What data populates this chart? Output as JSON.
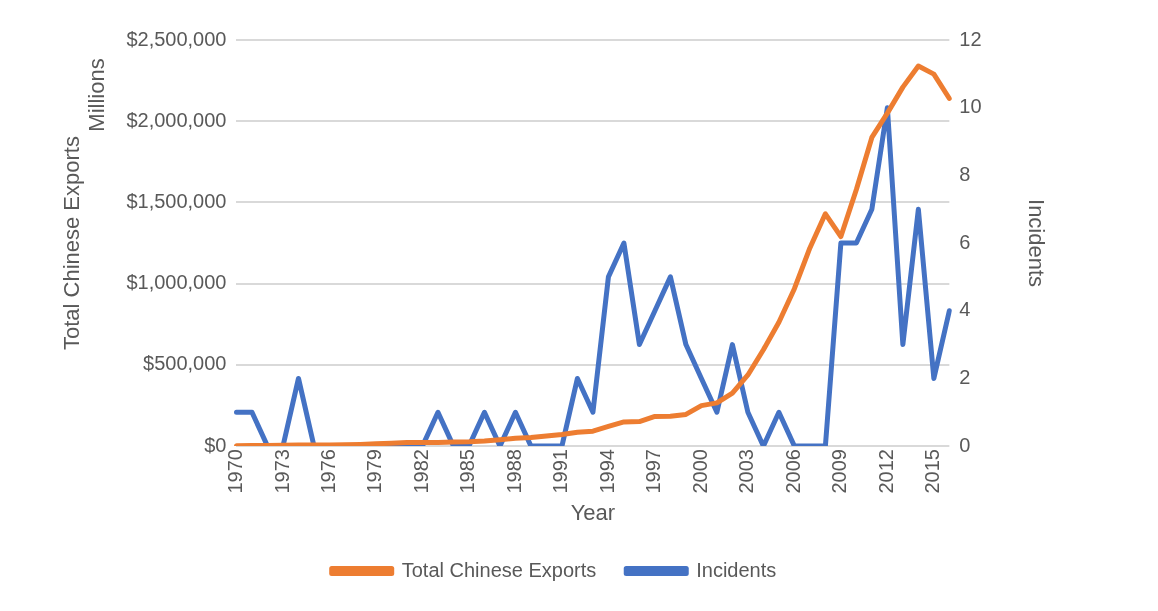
{
  "chart_data": {
    "type": "line",
    "categories": [
      "1970",
      null,
      null,
      "1973",
      null,
      null,
      "1976",
      null,
      null,
      "1979",
      null,
      null,
      "1982",
      null,
      null,
      "1985",
      null,
      null,
      "1988",
      null,
      null,
      "1991",
      null,
      null,
      "1994",
      null,
      null,
      "1997",
      null,
      null,
      "2000",
      null,
      null,
      "2003",
      null,
      null,
      "2006",
      null,
      null,
      "2009",
      null,
      null,
      "2012",
      null,
      null,
      "2015",
      null
    ],
    "series": [
      {
        "name": "Total Chinese Exports",
        "color": "#ed7d31",
        "values": [
          2000,
          3000,
          3000,
          6000,
          7000,
          7000,
          7000,
          8000,
          10000,
          14000,
          18000,
          22000,
          22000,
          22000,
          26000,
          27000,
          31000,
          39000,
          48000,
          53000,
          62000,
          72000,
          85000,
          92000,
          121000,
          149000,
          151000,
          183000,
          184000,
          195000,
          249000,
          266000,
          326000,
          438000,
          593000,
          762000,
          969000,
          1220000,
          1430000,
          1290000,
          1580000,
          1900000,
          2050000,
          2210000,
          2340000,
          2290000,
          2140000
        ]
      },
      {
        "name": "Incidents",
        "color": "#4472c4",
        "axis": "y2",
        "values": [
          1,
          1,
          0,
          0,
          2,
          0,
          0,
          0,
          0,
          0,
          0,
          0,
          0,
          1,
          0,
          0,
          1,
          0,
          1,
          0,
          0,
          0,
          2,
          1,
          5,
          6,
          3,
          4,
          5,
          3,
          2,
          1,
          3,
          1,
          0,
          1,
          0,
          0,
          0,
          6,
          6,
          7,
          10,
          3,
          7,
          2,
          4
        ]
      }
    ],
    "xlabel": "Year",
    "ylabel": "Total Chinese Exports",
    "y2label": "Incidents",
    "annotations": [
      "Millions"
    ],
    "ylim": [
      0,
      2500000
    ],
    "yticks": [
      {
        "value": 0,
        "label": "$0"
      },
      {
        "value": 500000,
        "label": "$500,000"
      },
      {
        "value": 1000000,
        "label": "$1,000,000"
      },
      {
        "value": 1500000,
        "label": "$1,500,000"
      },
      {
        "value": 2000000,
        "label": "$2,000,000"
      },
      {
        "value": 2500000,
        "label": "$2,500,000"
      }
    ],
    "y2lim": [
      0,
      12
    ],
    "y2ticks": [
      0,
      2,
      4,
      6,
      8,
      10,
      12
    ],
    "grid": "y",
    "legend": "bottom",
    "marker": "none",
    "line_style": "solid"
  }
}
